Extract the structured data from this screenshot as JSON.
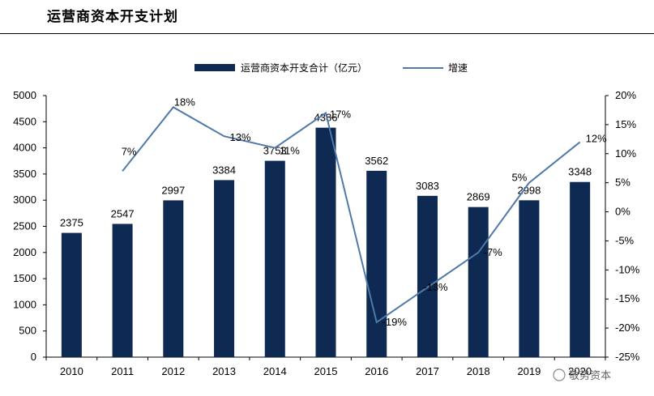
{
  "page": {
    "title": "运营商资本开支计划"
  },
  "watermark": {
    "text": "敬势资本"
  },
  "chart_data": {
    "type": "bar",
    "categories": [
      "2010",
      "2011",
      "2012",
      "2013",
      "2014",
      "2015",
      "2016",
      "2017",
      "2018",
      "2019",
      "2020"
    ],
    "series": [
      {
        "name": "运营商资本开支合计（亿元）",
        "type": "bar",
        "axis": "left",
        "color": "#0e2a52",
        "values": [
          2375,
          2547,
          2997,
          3384,
          3753,
          4386,
          3562,
          3083,
          2869,
          2998,
          3348
        ],
        "labels": [
          "2375",
          "2547",
          "2997",
          "3384",
          "3753",
          "4386",
          "3562",
          "3083",
          "2869",
          "2998",
          "3348"
        ]
      },
      {
        "name": "增速",
        "type": "line",
        "axis": "right",
        "color": "#4f79a8",
        "values": [
          null,
          7,
          18,
          13,
          11,
          17,
          -19,
          -13,
          -7,
          5,
          12
        ],
        "labels": [
          null,
          "7%",
          "18%",
          "13%",
          "11%",
          "17%",
          "-19%",
          "-13%",
          "-7%",
          "5%",
          "12%"
        ]
      }
    ],
    "y_left": {
      "min": 0,
      "max": 5000,
      "step": 500,
      "ticks": [
        "0",
        "500",
        "1000",
        "1500",
        "2000",
        "2500",
        "3000",
        "3500",
        "4000",
        "4500",
        "5000"
      ]
    },
    "y_right": {
      "min": -25,
      "max": 20,
      "step": 5,
      "ticks": [
        "-25%",
        "-20%",
        "-15%",
        "-10%",
        "-5%",
        "0%",
        "5%",
        "10%",
        "15%",
        "20%"
      ]
    },
    "legend_position": "top-center",
    "grid": false
  }
}
